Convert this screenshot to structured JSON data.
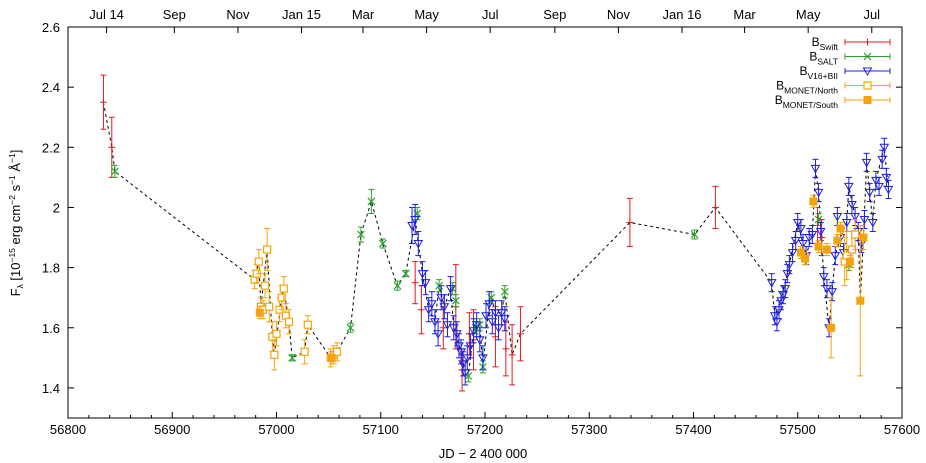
{
  "chart_data": {
    "type": "scatter",
    "xlabel": "JD − 2 400 000",
    "ylabel_main": "F",
    "ylabel_sub": "λ",
    "ylabel_rest_a": " [10",
    "ylabel_exp1": "−15",
    "ylabel_rest_b": " erg cm",
    "ylabel_exp2": "−2",
    "ylabel_rest_c": " s",
    "ylabel_exp3": "−1",
    "ylabel_rest_d": " Å",
    "ylabel_exp4": "−1",
    "ylabel_rest_e": "]",
    "xlim": [
      56800,
      57600
    ],
    "ylim": [
      1.3,
      2.6
    ],
    "x_ticks": [
      56800,
      56900,
      57000,
      57100,
      57200,
      57300,
      57400,
      57500,
      57600
    ],
    "y_ticks": [
      1.4,
      1.6,
      1.8,
      2,
      2.2,
      2.4,
      2.6
    ],
    "y_tick_labels": [
      "1.4",
      "1.6",
      "1.8",
      "2",
      "2.2",
      "2.4",
      "2.6"
    ],
    "top_axis": [
      {
        "label": "Jul 14",
        "x": 56837
      },
      {
        "label": "Sep",
        "x": 56902
      },
      {
        "label": "Nov",
        "x": 56963
      },
      {
        "label": "Jan 15",
        "x": 57024
      },
      {
        "label": "Mar",
        "x": 57083
      },
      {
        "label": "May",
        "x": 57144
      },
      {
        "label": "Jul",
        "x": 57205
      },
      {
        "label": "Sep",
        "x": 57267
      },
      {
        "label": "Nov",
        "x": 57328
      },
      {
        "label": "Jan 16",
        "x": 57389
      },
      {
        "label": "Mar",
        "x": 57449
      },
      {
        "label": "May",
        "x": 57510
      },
      {
        "label": "Jul",
        "x": 57571
      }
    ],
    "grid": false,
    "legend_position": "top-right",
    "series": [
      {
        "name_main": "B",
        "name_sub": "Swift",
        "color": "#e41a1c",
        "marker": "plus",
        "points": [
          [
            56834,
            2.35,
            0.09
          ],
          [
            56842,
            2.2,
            0.1
          ],
          [
            57133,
            1.75,
            0.07
          ],
          [
            57139,
            1.66,
            0.08
          ],
          [
            57160,
            1.6,
            0.07
          ],
          [
            57172,
            1.67,
            0.14
          ],
          [
            57178,
            1.46,
            0.07
          ],
          [
            57185,
            1.58,
            0.07
          ],
          [
            57189,
            1.56,
            0.1
          ],
          [
            57210,
            1.57,
            0.1
          ],
          [
            57220,
            1.53,
            0.09
          ],
          [
            57226,
            1.51,
            0.1
          ],
          [
            57234,
            1.58,
            0.09
          ],
          [
            57339,
            1.95,
            0.08
          ],
          [
            57421,
            2.0,
            0.07
          ],
          [
            57519,
            1.94,
            0.06
          ],
          [
            57523,
            1.9,
            0.06
          ]
        ]
      },
      {
        "name_main": "B",
        "name_sub": "SALT",
        "color": "#2ca02c",
        "marker": "cross",
        "points": [
          [
            56845,
            2.12,
            0.02
          ],
          [
            57015,
            1.5,
            0.01
          ],
          [
            57071,
            1.6,
            0.015
          ],
          [
            57081,
            1.91,
            0.025
          ],
          [
            57091,
            2.02,
            0.04
          ],
          [
            57102,
            1.88,
            0.015
          ],
          [
            57116,
            1.74,
            0.015
          ],
          [
            57124,
            1.78,
            0.01
          ],
          [
            57135,
            1.98,
            0.02
          ],
          [
            57156,
            1.74,
            0.02
          ],
          [
            57169,
            1.73,
            0.02
          ],
          [
            57172,
            1.69,
            0.02
          ],
          [
            57184,
            1.44,
            0.02
          ],
          [
            57191,
            1.6,
            0.02
          ],
          [
            57195,
            1.61,
            0.02
          ],
          [
            57198,
            1.47,
            0.02
          ],
          [
            57206,
            1.7,
            0.02
          ],
          [
            57219,
            1.72,
            0.02
          ],
          [
            57401,
            1.91,
            0.015
          ],
          [
            57520,
            1.96,
            0.02
          ],
          [
            57549,
            1.81,
            0.02
          ]
        ]
      },
      {
        "name_main": "B",
        "name_sub": "V16+BII",
        "color": "#1f1fe0",
        "marker": "tri-down",
        "points": [
          [
            57130,
            1.94,
            0.06
          ],
          [
            57133,
            1.96,
            0.05
          ],
          [
            57136,
            1.88,
            0.04
          ],
          [
            57140,
            1.78,
            0.04
          ],
          [
            57143,
            1.75,
            0.04
          ],
          [
            57146,
            1.66,
            0.04
          ],
          [
            57149,
            1.68,
            0.04
          ],
          [
            57152,
            1.62,
            0.04
          ],
          [
            57155,
            1.58,
            0.04
          ],
          [
            57158,
            1.7,
            0.04
          ],
          [
            57161,
            1.67,
            0.04
          ],
          [
            57164,
            1.61,
            0.04
          ],
          [
            57167,
            1.73,
            0.04
          ],
          [
            57170,
            1.6,
            0.04
          ],
          [
            57173,
            1.58,
            0.04
          ],
          [
            57175,
            1.54,
            0.04
          ],
          [
            57177,
            1.52,
            0.04
          ],
          [
            57179,
            1.48,
            0.04
          ],
          [
            57181,
            1.45,
            0.04
          ],
          [
            57183,
            1.5,
            0.04
          ],
          [
            57186,
            1.54,
            0.04
          ],
          [
            57189,
            1.59,
            0.04
          ],
          [
            57192,
            1.61,
            0.04
          ],
          [
            57195,
            1.56,
            0.04
          ],
          [
            57198,
            1.5,
            0.04
          ],
          [
            57201,
            1.64,
            0.04
          ],
          [
            57204,
            1.68,
            0.04
          ],
          [
            57207,
            1.62,
            0.04
          ],
          [
            57210,
            1.65,
            0.04
          ],
          [
            57213,
            1.6,
            0.04
          ],
          [
            57216,
            1.65,
            0.04
          ],
          [
            57219,
            1.63,
            0.04
          ],
          [
            57475,
            1.75,
            0.03
          ],
          [
            57478,
            1.64,
            0.03
          ],
          [
            57480,
            1.62,
            0.03
          ],
          [
            57482,
            1.66,
            0.03
          ],
          [
            57484,
            1.69,
            0.03
          ],
          [
            57486,
            1.71,
            0.03
          ],
          [
            57488,
            1.73,
            0.03
          ],
          [
            57490,
            1.78,
            0.03
          ],
          [
            57492,
            1.81,
            0.03
          ],
          [
            57495,
            1.85,
            0.03
          ],
          [
            57498,
            1.89,
            0.03
          ],
          [
            57500,
            1.95,
            0.03
          ],
          [
            57503,
            1.93,
            0.03
          ],
          [
            57505,
            1.88,
            0.03
          ],
          [
            57508,
            1.84,
            0.03
          ],
          [
            57511,
            1.9,
            0.03
          ],
          [
            57514,
            1.91,
            0.03
          ],
          [
            57517,
            2.13,
            0.03
          ],
          [
            57520,
            2.05,
            0.03
          ],
          [
            57522,
            1.92,
            0.03
          ],
          [
            57525,
            1.77,
            0.03
          ],
          [
            57528,
            1.73,
            0.03
          ],
          [
            57530,
            1.6,
            0.03
          ],
          [
            57533,
            1.72,
            0.03
          ],
          [
            57536,
            1.84,
            0.03
          ],
          [
            57538,
            1.97,
            0.03
          ],
          [
            57541,
            1.9,
            0.03
          ],
          [
            57544,
            1.85,
            0.03
          ],
          [
            57547,
            1.95,
            0.03
          ],
          [
            57549,
            2.07,
            0.03
          ],
          [
            57552,
            2.01,
            0.03
          ],
          [
            57555,
            1.97,
            0.03
          ],
          [
            57558,
            1.92,
            0.03
          ],
          [
            57561,
            1.88,
            0.03
          ],
          [
            57564,
            1.96,
            0.03
          ],
          [
            57566,
            2.15,
            0.03
          ],
          [
            57569,
            2.05,
            0.03
          ],
          [
            57572,
            1.95,
            0.03
          ],
          [
            57575,
            2.09,
            0.03
          ],
          [
            57578,
            2.07,
            0.03
          ],
          [
            57581,
            2.16,
            0.03
          ],
          [
            57583,
            2.2,
            0.03
          ],
          [
            57585,
            2.1,
            0.03
          ],
          [
            57587,
            2.06,
            0.03
          ]
        ]
      },
      {
        "name_main": "B",
        "name_sub": "MONET/North",
        "color": "#f5a30a",
        "marker": "square-open",
        "points": [
          [
            56979,
            1.76,
            0.03
          ],
          [
            56981,
            1.78,
            0.03
          ],
          [
            56983,
            1.82,
            0.04
          ],
          [
            56985,
            1.67,
            0.03
          ],
          [
            56987,
            1.66,
            0.03
          ],
          [
            56989,
            1.74,
            0.04
          ],
          [
            56991,
            1.86,
            0.07
          ],
          [
            56993,
            1.67,
            0.05
          ],
          [
            56996,
            1.57,
            0.05
          ],
          [
            56998,
            1.51,
            0.05
          ],
          [
            57000,
            1.58,
            0.04
          ],
          [
            57003,
            1.66,
            0.04
          ],
          [
            57005,
            1.7,
            0.04
          ],
          [
            57007,
            1.73,
            0.04
          ],
          [
            57009,
            1.64,
            0.04
          ],
          [
            57012,
            1.62,
            0.04
          ],
          [
            57027,
            1.52,
            0.04
          ],
          [
            57030,
            1.61,
            0.03
          ],
          [
            57052,
            1.5,
            0.03
          ],
          [
            57055,
            1.51,
            0.03
          ],
          [
            57058,
            1.52,
            0.03
          ],
          [
            57545,
            1.82,
            0.08
          ],
          [
            57547,
            1.84,
            0.08
          ],
          [
            57552,
            1.86,
            0.06
          ],
          [
            57555,
            1.91,
            0.05
          ]
        ]
      },
      {
        "name_main": "B",
        "name_sub": "MONET/South",
        "color": "#f5a30a",
        "marker": "square-filled",
        "points": [
          [
            56984,
            1.65,
            0.02
          ],
          [
            57053,
            1.5,
            0.02
          ],
          [
            57503,
            1.85,
            0.02
          ],
          [
            57507,
            1.83,
            0.02
          ],
          [
            57515,
            2.02,
            0.02
          ],
          [
            57520,
            1.87,
            0.02
          ],
          [
            57528,
            1.86,
            0.02
          ],
          [
            57532,
            1.6,
            0.1
          ],
          [
            57538,
            1.89,
            0.02
          ],
          [
            57541,
            1.93,
            0.02
          ],
          [
            57550,
            1.82,
            0.02
          ],
          [
            57560,
            1.69,
            0.25
          ],
          [
            57563,
            1.9,
            0.04
          ]
        ]
      }
    ],
    "dashed_connector": {
      "color": "#000000",
      "points": [
        [
          56834,
          2.35
        ],
        [
          56842,
          2.2
        ],
        [
          56845,
          2.12
        ],
        [
          56979,
          1.76
        ],
        [
          56983,
          1.82
        ],
        [
          56985,
          1.67
        ],
        [
          56991,
          1.86
        ],
        [
          56996,
          1.57
        ],
        [
          56998,
          1.51
        ],
        [
          57005,
          1.7
        ],
        [
          57007,
          1.73
        ],
        [
          57012,
          1.62
        ],
        [
          57015,
          1.5
        ],
        [
          57027,
          1.52
        ],
        [
          57030,
          1.61
        ],
        [
          57052,
          1.5
        ],
        [
          57058,
          1.52
        ],
        [
          57071,
          1.6
        ],
        [
          57081,
          1.91
        ],
        [
          57091,
          2.02
        ],
        [
          57102,
          1.88
        ],
        [
          57116,
          1.74
        ],
        [
          57124,
          1.78
        ],
        [
          57133,
          1.96
        ],
        [
          57136,
          1.88
        ],
        [
          57140,
          1.78
        ],
        [
          57146,
          1.66
        ],
        [
          57152,
          1.62
        ],
        [
          57156,
          1.74
        ],
        [
          57161,
          1.67
        ],
        [
          57167,
          1.73
        ],
        [
          57170,
          1.6
        ],
        [
          57177,
          1.52
        ],
        [
          57181,
          1.45
        ],
        [
          57184,
          1.44
        ],
        [
          57189,
          1.59
        ],
        [
          57195,
          1.61
        ],
        [
          57198,
          1.47
        ],
        [
          57204,
          1.68
        ],
        [
          57206,
          1.7
        ],
        [
          57210,
          1.65
        ],
        [
          57216,
          1.65
        ],
        [
          57219,
          1.72
        ],
        [
          57226,
          1.51
        ],
        [
          57234,
          1.58
        ],
        [
          57339,
          1.95
        ],
        [
          57401,
          1.91
        ],
        [
          57421,
          2.0
        ],
        [
          57475,
          1.75
        ],
        [
          57478,
          1.64
        ],
        [
          57484,
          1.69
        ],
        [
          57492,
          1.81
        ],
        [
          57500,
          1.95
        ],
        [
          57505,
          1.88
        ],
        [
          57508,
          1.84
        ],
        [
          57514,
          1.91
        ],
        [
          57517,
          2.13
        ],
        [
          57520,
          2.05
        ],
        [
          57525,
          1.77
        ],
        [
          57530,
          1.6
        ],
        [
          57536,
          1.84
        ],
        [
          57541,
          1.9
        ],
        [
          57547,
          1.95
        ],
        [
          57549,
          2.07
        ],
        [
          57555,
          1.97
        ],
        [
          57558,
          1.92
        ],
        [
          57560,
          1.69
        ],
        [
          57563,
          1.9
        ],
        [
          57566,
          2.15
        ],
        [
          57572,
          1.95
        ],
        [
          57575,
          2.09
        ],
        [
          57583,
          2.2
        ],
        [
          57587,
          2.06
        ]
      ]
    }
  }
}
